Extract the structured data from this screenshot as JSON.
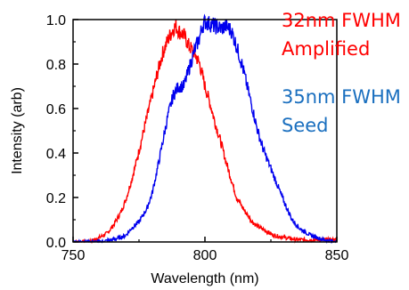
{
  "chart_data": {
    "type": "line",
    "xlabel": "Wavelength (nm)",
    "ylabel": "Intensity (arb)",
    "xlim": [
      750,
      850
    ],
    "ylim": [
      0,
      1.0
    ],
    "x_ticks": [
      "750",
      "800",
      "850"
    ],
    "y_ticks": [
      "0.0",
      "0.2",
      "0.4",
      "0.6",
      "0.8",
      "1.0"
    ],
    "grid": false,
    "series": [
      {
        "color": "#ff0000",
        "x": [
          750,
          755,
          758,
          760,
          763,
          765,
          768,
          770,
          772,
          774,
          776,
          778,
          780,
          782,
          784,
          786,
          788,
          789,
          790,
          792,
          794,
          796,
          798,
          800,
          802,
          804,
          806,
          808,
          810,
          812,
          815,
          818,
          820,
          823,
          826,
          830,
          835,
          840,
          845,
          850
        ],
        "y": [
          0.0,
          0.0,
          0.01,
          0.02,
          0.04,
          0.07,
          0.13,
          0.19,
          0.27,
          0.36,
          0.46,
          0.56,
          0.66,
          0.76,
          0.85,
          0.91,
          0.96,
          0.97,
          0.95,
          0.93,
          0.88,
          0.85,
          0.8,
          0.7,
          0.62,
          0.53,
          0.45,
          0.36,
          0.28,
          0.2,
          0.14,
          0.09,
          0.07,
          0.05,
          0.03,
          0.02,
          0.01,
          0.01,
          0.01,
          0.01
        ]
      },
      {
        "color": "#0000ee",
        "x": [
          750,
          760,
          765,
          768,
          770,
          772,
          775,
          778,
          780,
          782,
          784,
          786,
          788,
          790,
          792,
          794,
          796,
          798,
          799,
          800,
          802,
          804,
          806,
          808,
          810,
          812,
          814,
          816,
          818,
          820,
          822,
          825,
          828,
          830,
          833,
          836,
          840,
          845,
          850
        ],
        "y": [
          0.0,
          0.0,
          0.01,
          0.02,
          0.03,
          0.06,
          0.09,
          0.15,
          0.22,
          0.33,
          0.45,
          0.57,
          0.66,
          0.7,
          0.7,
          0.78,
          0.86,
          0.92,
          0.97,
          0.99,
          0.98,
          0.97,
          0.96,
          0.97,
          0.95,
          0.88,
          0.8,
          0.7,
          0.6,
          0.5,
          0.42,
          0.33,
          0.24,
          0.18,
          0.1,
          0.06,
          0.03,
          0.01,
          0.0
        ]
      }
    ],
    "annotations": [
      {
        "line1": "32nm FWHM",
        "line2": "Amplified",
        "color": "#ff0000"
      },
      {
        "line1": "35nm FWHM",
        "line2": "Seed",
        "color": "#1a6fbf"
      }
    ]
  }
}
